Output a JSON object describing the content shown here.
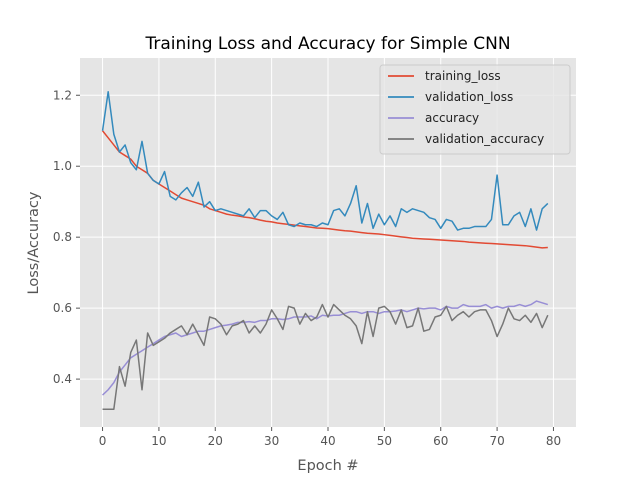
{
  "chart_data": {
    "type": "line",
    "title": "Training Loss and Accuracy for Simple CNN",
    "xlabel": "Epoch #",
    "ylabel": "Loss/Accuracy",
    "xlim": [
      -4,
      84
    ],
    "ylim": [
      0.265,
      1.305
    ],
    "xticks": [
      0,
      10,
      20,
      30,
      40,
      50,
      60,
      70,
      80
    ],
    "yticks": [
      0.4,
      0.6,
      0.8,
      1.0,
      1.2
    ],
    "grid": true,
    "legend_position": "top-right",
    "colors": {
      "background": "#e5e5e5",
      "grid": "#ffffff",
      "training_loss": "#e24a33",
      "validation_loss": "#348abd",
      "accuracy": "#988ed5",
      "validation_accuracy": "#777777"
    },
    "x": [
      0,
      1,
      2,
      3,
      4,
      5,
      6,
      7,
      8,
      9,
      10,
      11,
      12,
      13,
      14,
      15,
      16,
      17,
      18,
      19,
      20,
      21,
      22,
      23,
      24,
      25,
      26,
      27,
      28,
      29,
      30,
      31,
      32,
      33,
      34,
      35,
      36,
      37,
      38,
      39,
      40,
      41,
      42,
      43,
      44,
      45,
      46,
      47,
      48,
      49,
      50,
      51,
      52,
      53,
      54,
      55,
      56,
      57,
      58,
      59,
      60,
      61,
      62,
      63,
      64,
      65,
      66,
      67,
      68,
      69,
      70,
      71,
      72,
      73,
      74,
      75,
      76,
      77,
      78,
      79
    ],
    "series": [
      {
        "name": "training_loss",
        "key": "training_loss",
        "values": [
          1.1,
          1.08,
          1.06,
          1.04,
          1.03,
          1.02,
          1.0,
          0.99,
          0.98,
          0.96,
          0.95,
          0.94,
          0.93,
          0.92,
          0.91,
          0.905,
          0.9,
          0.895,
          0.89,
          0.88,
          0.875,
          0.87,
          0.865,
          0.862,
          0.86,
          0.857,
          0.855,
          0.852,
          0.848,
          0.845,
          0.843,
          0.84,
          0.838,
          0.836,
          0.834,
          0.832,
          0.83,
          0.828,
          0.826,
          0.825,
          0.824,
          0.822,
          0.82,
          0.818,
          0.817,
          0.815,
          0.813,
          0.811,
          0.81,
          0.809,
          0.807,
          0.805,
          0.803,
          0.801,
          0.799,
          0.797,
          0.796,
          0.795,
          0.794,
          0.793,
          0.792,
          0.791,
          0.79,
          0.789,
          0.788,
          0.786,
          0.785,
          0.784,
          0.783,
          0.782,
          0.781,
          0.78,
          0.779,
          0.778,
          0.777,
          0.776,
          0.774,
          0.772,
          0.77,
          0.771
        ]
      },
      {
        "name": "validation_loss",
        "key": "validation_loss",
        "values": [
          1.1,
          1.21,
          1.09,
          1.04,
          1.06,
          1.01,
          0.99,
          1.07,
          0.98,
          0.96,
          0.95,
          0.985,
          0.915,
          0.905,
          0.925,
          0.94,
          0.915,
          0.955,
          0.885,
          0.9,
          0.875,
          0.88,
          0.875,
          0.87,
          0.865,
          0.86,
          0.88,
          0.855,
          0.875,
          0.875,
          0.86,
          0.85,
          0.87,
          0.835,
          0.83,
          0.84,
          0.835,
          0.835,
          0.83,
          0.84,
          0.835,
          0.875,
          0.88,
          0.86,
          0.895,
          0.945,
          0.84,
          0.895,
          0.825,
          0.865,
          0.835,
          0.86,
          0.83,
          0.88,
          0.87,
          0.88,
          0.875,
          0.87,
          0.855,
          0.85,
          0.825,
          0.85,
          0.845,
          0.82,
          0.825,
          0.825,
          0.83,
          0.83,
          0.83,
          0.85,
          0.975,
          0.835,
          0.835,
          0.86,
          0.87,
          0.83,
          0.88,
          0.82,
          0.88,
          0.895
        ]
      },
      {
        "name": "accuracy",
        "key": "accuracy",
        "values": [
          0.355,
          0.37,
          0.39,
          0.42,
          0.44,
          0.46,
          0.47,
          0.48,
          0.49,
          0.5,
          0.51,
          0.52,
          0.525,
          0.53,
          0.52,
          0.525,
          0.53,
          0.535,
          0.535,
          0.54,
          0.545,
          0.55,
          0.552,
          0.555,
          0.56,
          0.56,
          0.562,
          0.56,
          0.565,
          0.565,
          0.57,
          0.57,
          0.568,
          0.57,
          0.575,
          0.575,
          0.575,
          0.578,
          0.57,
          0.58,
          0.578,
          0.58,
          0.58,
          0.585,
          0.59,
          0.59,
          0.585,
          0.59,
          0.59,
          0.585,
          0.59,
          0.59,
          0.592,
          0.595,
          0.59,
          0.595,
          0.6,
          0.598,
          0.6,
          0.6,
          0.595,
          0.605,
          0.6,
          0.6,
          0.61,
          0.605,
          0.605,
          0.605,
          0.61,
          0.6,
          0.605,
          0.6,
          0.605,
          0.605,
          0.61,
          0.605,
          0.61,
          0.62,
          0.615,
          0.61
        ]
      },
      {
        "name": "validation_accuracy",
        "key": "validation_accuracy",
        "values": [
          0.315,
          0.315,
          0.315,
          0.435,
          0.38,
          0.475,
          0.51,
          0.37,
          0.53,
          0.495,
          0.505,
          0.515,
          0.53,
          0.54,
          0.55,
          0.525,
          0.555,
          0.525,
          0.495,
          0.575,
          0.57,
          0.555,
          0.525,
          0.55,
          0.555,
          0.565,
          0.53,
          0.55,
          0.53,
          0.555,
          0.595,
          0.57,
          0.54,
          0.605,
          0.6,
          0.555,
          0.585,
          0.565,
          0.575,
          0.61,
          0.575,
          0.61,
          0.595,
          0.58,
          0.57,
          0.55,
          0.5,
          0.59,
          0.52,
          0.6,
          0.605,
          0.59,
          0.555,
          0.595,
          0.545,
          0.55,
          0.6,
          0.535,
          0.54,
          0.575,
          0.58,
          0.605,
          0.565,
          0.58,
          0.59,
          0.575,
          0.59,
          0.595,
          0.595,
          0.565,
          0.52,
          0.555,
          0.6,
          0.57,
          0.565,
          0.58,
          0.56,
          0.585,
          0.545,
          0.58
        ]
      }
    ]
  }
}
